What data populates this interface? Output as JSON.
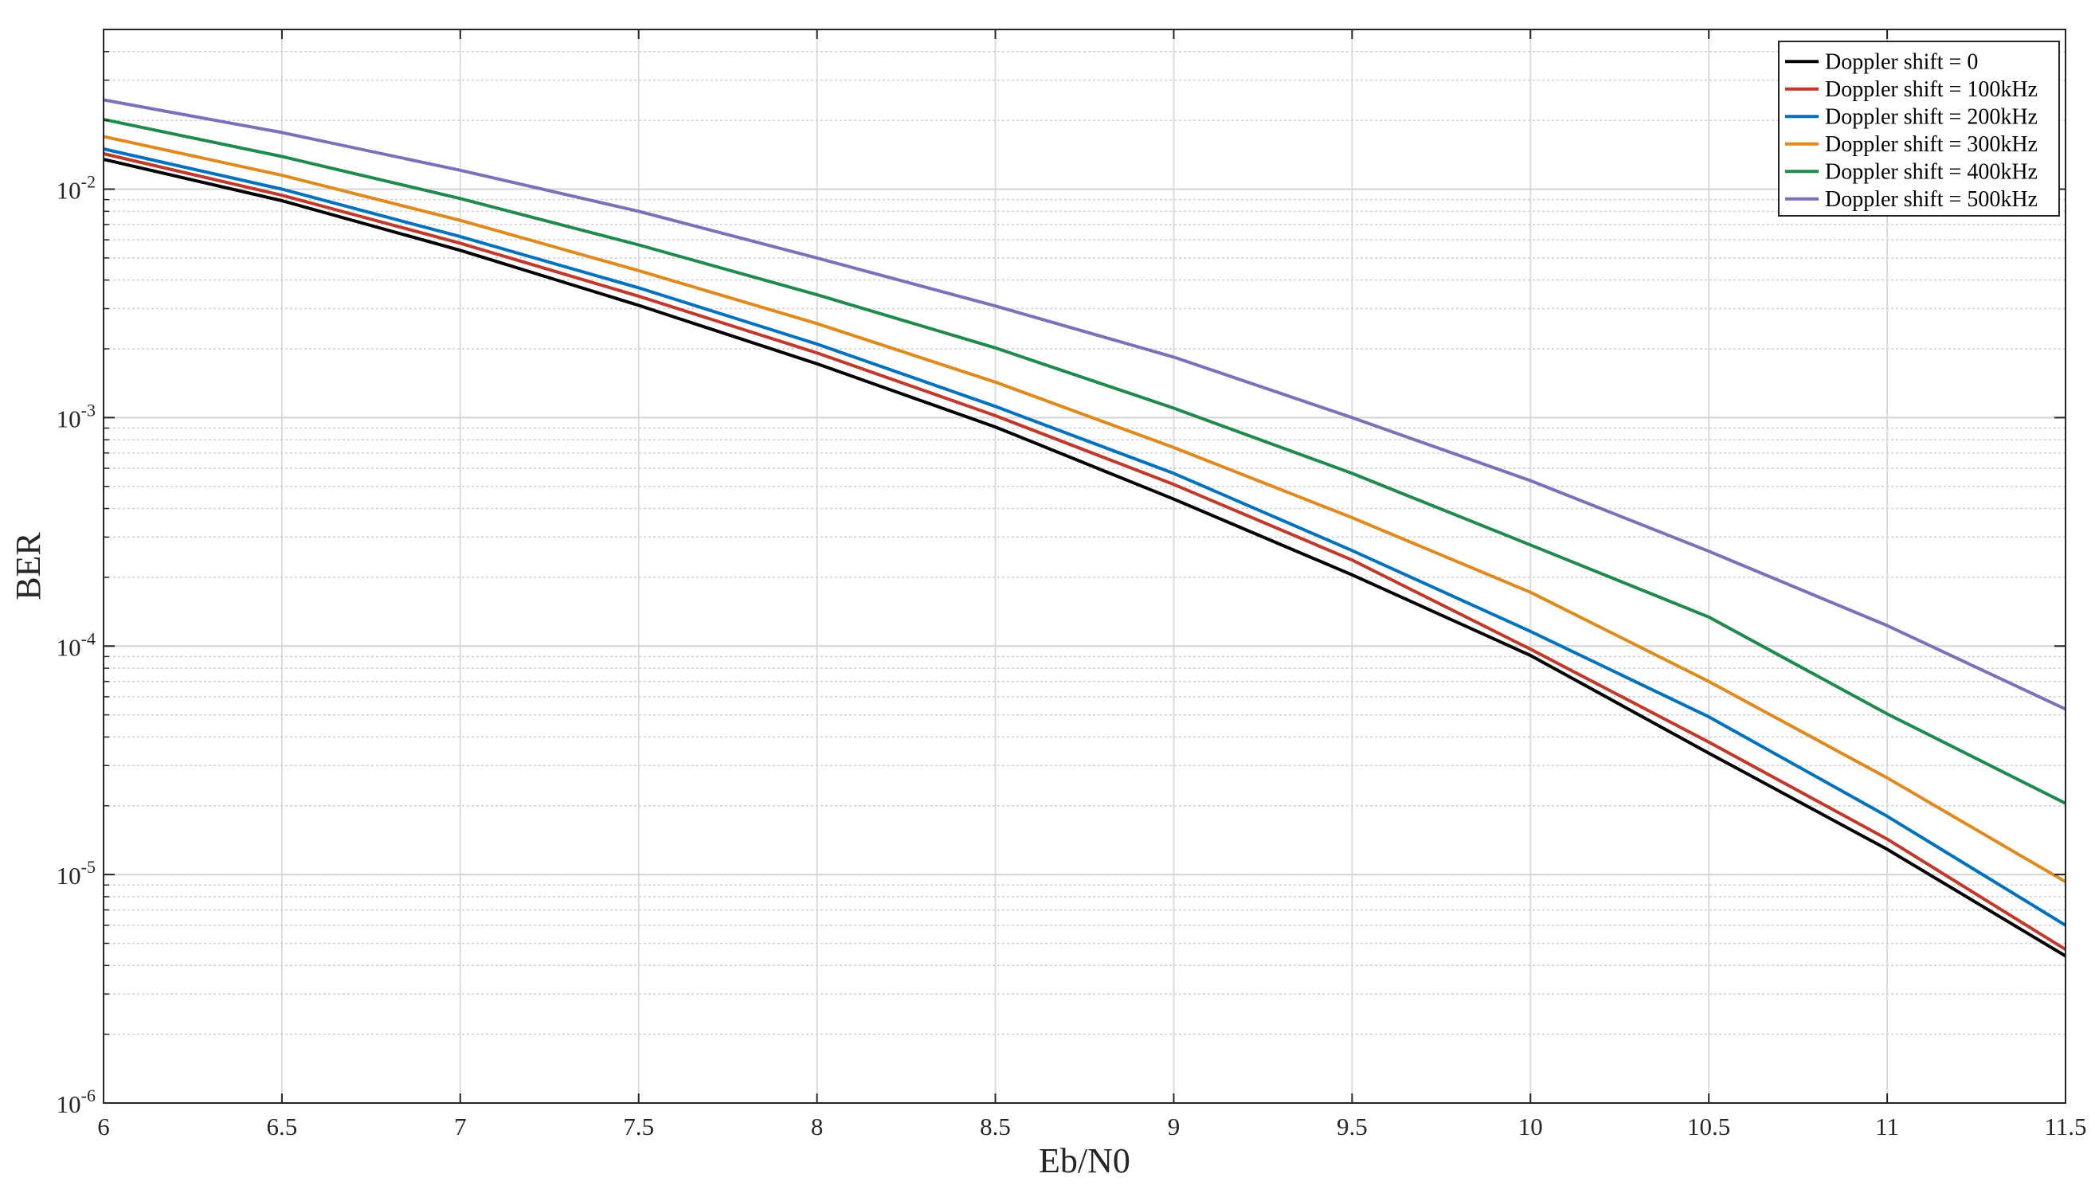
{
  "chart_data": {
    "type": "line",
    "title": "",
    "xlabel": "Eb/N0",
    "ylabel": "BER",
    "xscale": "linear",
    "yscale": "log",
    "xlim": [
      6,
      11.5
    ],
    "ylim": [
      1e-06,
      0.05
    ],
    "grid": true,
    "minor_grid": true,
    "legend_position": "top-right",
    "x_ticks": [
      "6",
      "6.5",
      "7",
      "7.5",
      "8",
      "8.5",
      "9",
      "9.5",
      "10",
      "10.5",
      "11",
      "11.5"
    ],
    "y_ticks": [
      {
        "base": "10",
        "exp": "-2"
      },
      {
        "base": "10",
        "exp": "-3"
      },
      {
        "base": "10",
        "exp": "-4"
      },
      {
        "base": "10",
        "exp": "-5"
      },
      {
        "base": "10",
        "exp": "-6"
      }
    ],
    "x": [
      6,
      6.5,
      7,
      7.5,
      8,
      8.5,
      9,
      9.5,
      10,
      10.5,
      11,
      11.5
    ],
    "series": [
      {
        "name": "Doppler shift = 0",
        "color": "#000000",
        "values": [
          0.0135,
          0.0089,
          0.0054,
          0.0031,
          0.00172,
          0.00091,
          0.00044,
          0.000205,
          9.1e-05,
          3.4e-05,
          1.29e-05,
          4.4e-06
        ]
      },
      {
        "name": "Doppler shift = 100kHz",
        "color": "#c0392b",
        "values": [
          0.0143,
          0.0094,
          0.0058,
          0.0034,
          0.00192,
          0.00102,
          0.00051,
          0.000238,
          9.7e-05,
          3.8e-05,
          1.43e-05,
          4.7e-06
        ]
      },
      {
        "name": "Doppler shift = 200kHz",
        "color": "#0072bd",
        "values": [
          0.015,
          0.01,
          0.0062,
          0.0037,
          0.0021,
          0.00112,
          0.00057,
          0.000262,
          0.000116,
          4.9e-05,
          1.8e-05,
          6e-06
        ]
      },
      {
        "name": "Doppler shift = 300kHz",
        "color": "#e08a1e",
        "values": [
          0.017,
          0.0115,
          0.0073,
          0.0044,
          0.00258,
          0.00143,
          0.00074,
          0.000365,
          0.000172,
          7e-05,
          2.65e-05,
          9.3e-06
        ]
      },
      {
        "name": "Doppler shift = 400kHz",
        "color": "#1f8a4c",
        "values": [
          0.0202,
          0.0139,
          0.0091,
          0.0057,
          0.00345,
          0.00202,
          0.0011,
          0.00057,
          0.000277,
          0.000134,
          5.05e-05,
          2.05e-05
        ]
      },
      {
        "name": "Doppler shift = 500kHz",
        "color": "#7e6fb8",
        "values": [
          0.0246,
          0.0177,
          0.0121,
          0.008,
          0.005,
          0.00308,
          0.00184,
          0.001,
          0.00053,
          0.00026,
          0.000123,
          5.3e-05
        ]
      }
    ]
  }
}
